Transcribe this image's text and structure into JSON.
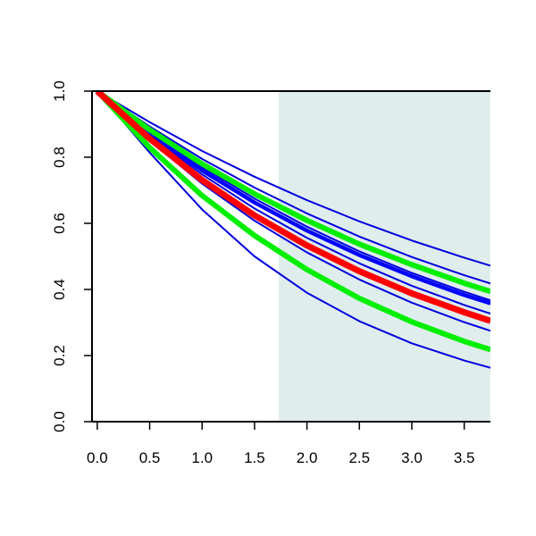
{
  "chart_data": {
    "type": "line",
    "title": "",
    "xlabel": "",
    "ylabel": "",
    "xlim": [
      -0.05,
      3.75
    ],
    "ylim": [
      0.0,
      1.0
    ],
    "x_ticks": [
      "0.0",
      "0.5",
      "1.0",
      "1.5",
      "2.0",
      "2.5",
      "3.0",
      "3.5"
    ],
    "y_ticks": [
      "0.0",
      "0.2",
      "0.4",
      "0.6",
      "0.8",
      "1.0"
    ],
    "grid": false,
    "legend": "none",
    "shaded_region": {
      "x_start": 1.73,
      "x_end": 3.75,
      "color": "#e0eded"
    },
    "x": [
      0.0,
      0.5,
      1.0,
      1.5,
      2.0,
      2.5,
      3.0,
      3.5,
      3.75
    ],
    "series": [
      {
        "color": "#0000dd",
        "width": 2,
        "values": [
          1.0,
          0.906,
          0.819,
          0.741,
          0.67,
          0.606,
          0.548,
          0.496,
          0.472
        ]
      },
      {
        "color": "#0000dd",
        "width": 2,
        "values": [
          1.0,
          0.893,
          0.795,
          0.708,
          0.63,
          0.56,
          0.498,
          0.443,
          0.418
        ]
      },
      {
        "color": "#0000dd",
        "width": 2,
        "values": [
          1.0,
          0.878,
          0.77,
          0.675,
          0.59,
          0.515,
          0.45,
          0.393,
          0.367
        ]
      },
      {
        "color": "#0000dd",
        "width": 2,
        "values": [
          1.0,
          0.874,
          0.763,
          0.665,
          0.58,
          0.505,
          0.44,
          0.383,
          0.357
        ]
      },
      {
        "color": "#0000dd",
        "width": 2,
        "values": [
          1.0,
          0.866,
          0.748,
          0.645,
          0.556,
          0.479,
          0.411,
          0.353,
          0.327
        ]
      },
      {
        "color": "#0000dd",
        "width": 2,
        "values": [
          1.0,
          0.85,
          0.72,
          0.608,
          0.512,
          0.43,
          0.36,
          0.301,
          0.275
        ]
      },
      {
        "color": "#0000dd",
        "width": 2,
        "values": [
          1.0,
          0.83,
          0.685,
          0.562,
          0.46,
          0.373,
          0.302,
          0.243,
          0.218
        ]
      },
      {
        "color": "#0000dd",
        "width": 2,
        "values": [
          1.0,
          0.814,
          0.642,
          0.5,
          0.39,
          0.304,
          0.237,
          0.185,
          0.163
        ]
      },
      {
        "color": "#0000ff",
        "width": 4.5,
        "values": [
          1.0,
          0.872,
          0.76,
          0.663,
          0.578,
          0.504,
          0.44,
          0.383,
          0.358
        ]
      },
      {
        "color": "#00ee00",
        "width": 6,
        "values": [
          1.0,
          0.883,
          0.78,
          0.689,
          0.609,
          0.537,
          0.475,
          0.419,
          0.394
        ]
      },
      {
        "color": "#00ee00",
        "width": 6,
        "values": [
          1.0,
          0.829,
          0.684,
          0.563,
          0.46,
          0.373,
          0.302,
          0.243,
          0.218
        ]
      },
      {
        "color": "#ff0000",
        "width": 7,
        "values": [
          1.0,
          0.856,
          0.731,
          0.624,
          0.533,
          0.455,
          0.388,
          0.331,
          0.305
        ]
      }
    ]
  }
}
